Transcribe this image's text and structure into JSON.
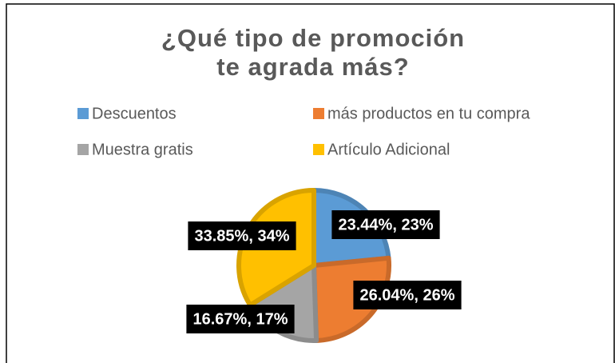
{
  "chart_data": {
    "type": "pie",
    "title": [
      "¿Qué tipo de promoción",
      "te agrada más?"
    ],
    "categories": [
      "Descuentos",
      "más productos en tu compra",
      "Muestra gratis",
      "Artículo Adicional"
    ],
    "values": [
      23.44,
      26.04,
      16.67,
      33.85
    ],
    "value_labels": [
      "23.44%, 23%",
      "26.04%, 26%",
      "16.67%, 17%",
      "33.85%, 34%"
    ],
    "colors": [
      "#5b9bd5",
      "#ed7d31",
      "#a5a5a5",
      "#ffc000"
    ],
    "legend": "top"
  }
}
